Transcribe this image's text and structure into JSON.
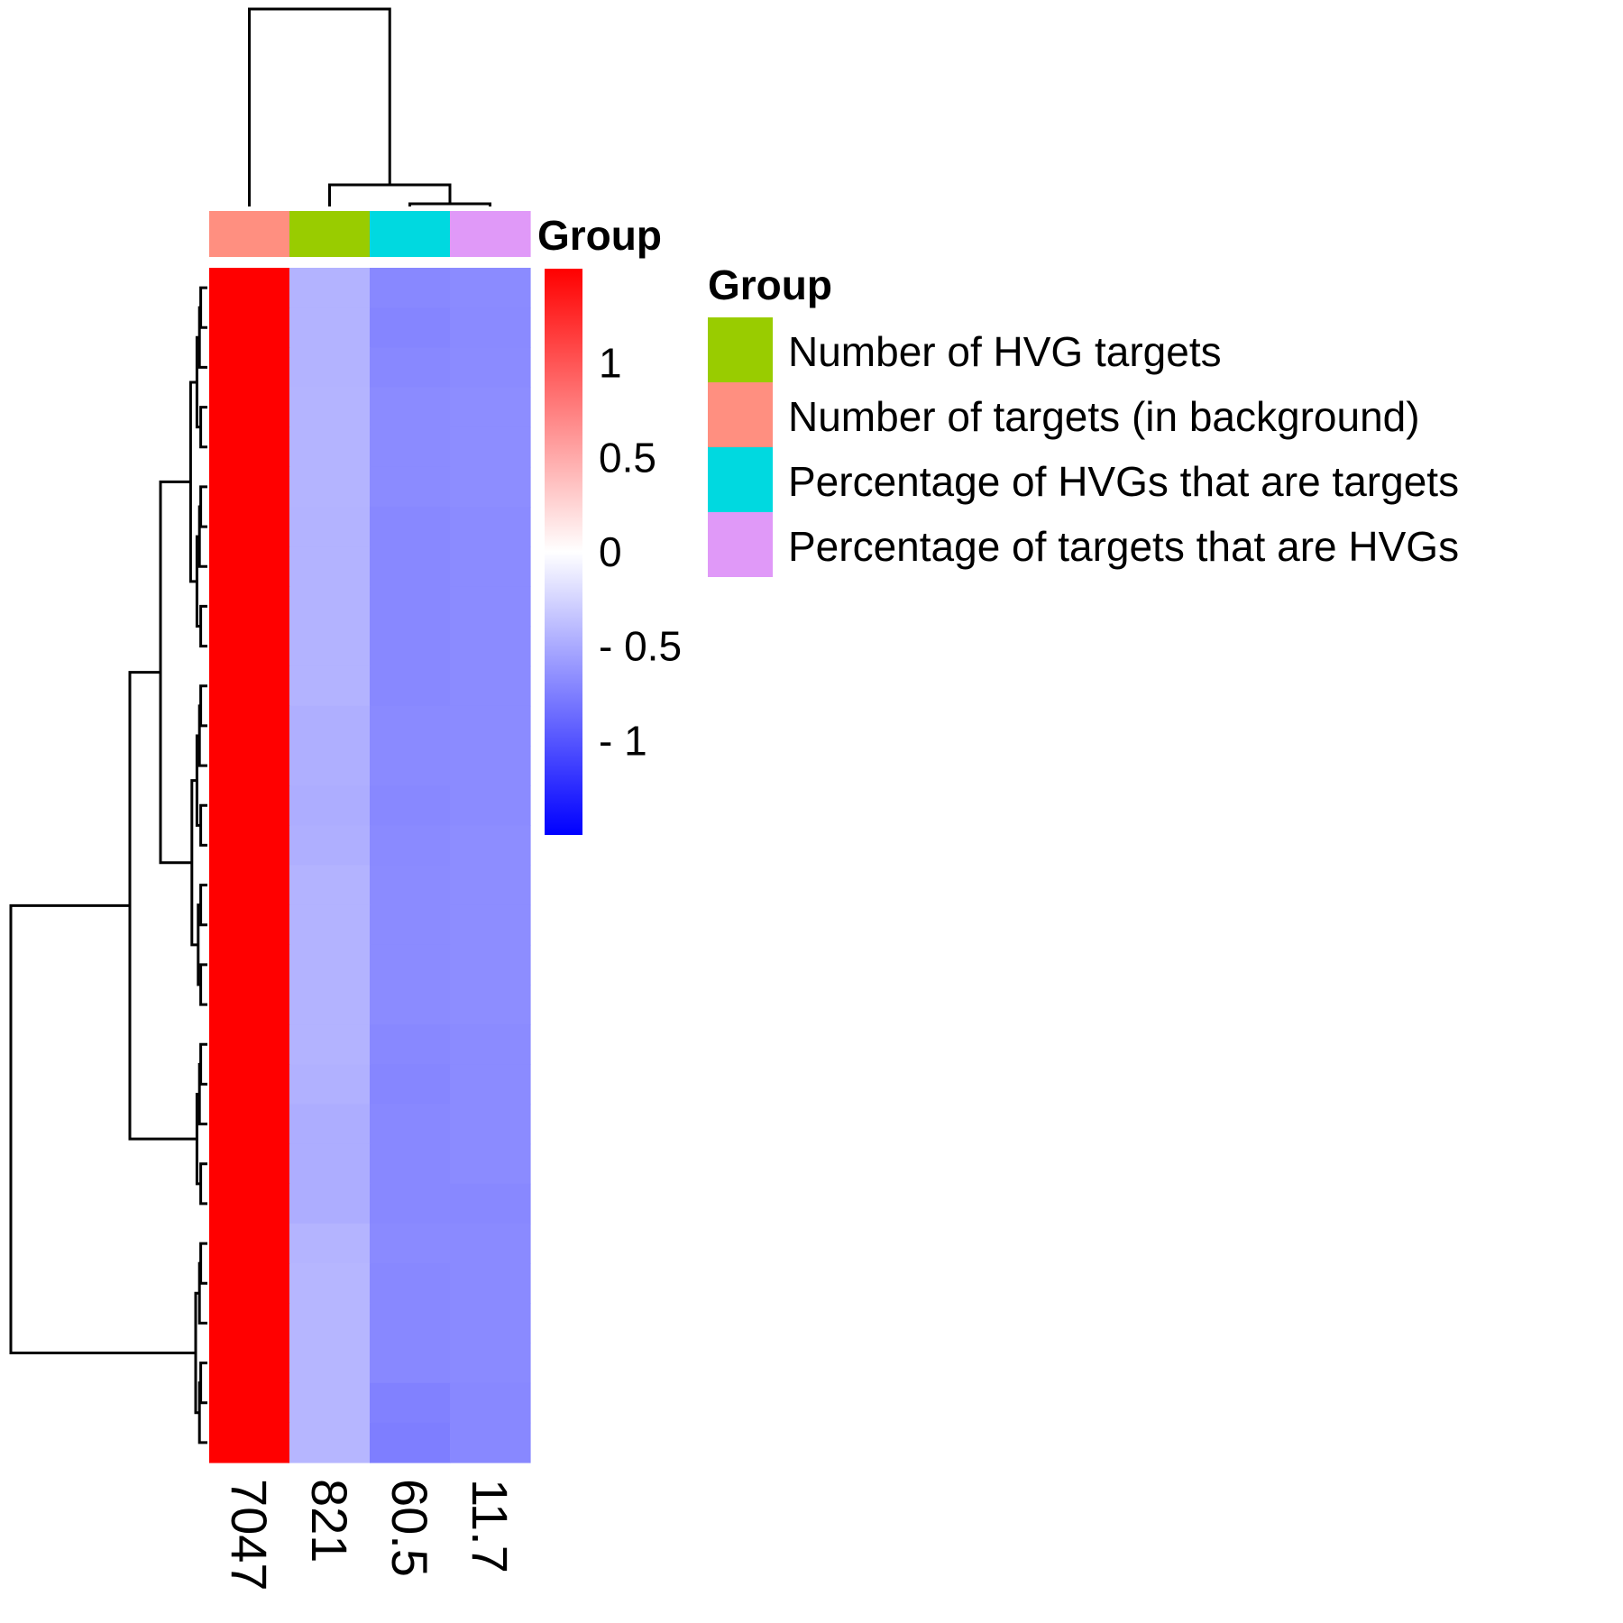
{
  "chart_data": {
    "type": "heatmap",
    "columns": [
      {
        "label": "7047",
        "group": "Number of targets (in background)"
      },
      {
        "label": "821",
        "group": "Number of HVG targets"
      },
      {
        "label": "60.5",
        "group": "Percentage of HVGs that are targets"
      },
      {
        "label": "11.7",
        "group": "Percentage of targets that are HVGs"
      }
    ],
    "rows": 30,
    "values": [
      [
        1.5,
        -0.45,
        -0.7,
        -0.68
      ],
      [
        1.5,
        -0.45,
        -0.72,
        -0.69
      ],
      [
        1.5,
        -0.45,
        -0.7,
        -0.68
      ],
      [
        1.5,
        -0.44,
        -0.68,
        -0.67
      ],
      [
        1.5,
        -0.44,
        -0.68,
        -0.67
      ],
      [
        1.5,
        -0.44,
        -0.68,
        -0.67
      ],
      [
        1.5,
        -0.45,
        -0.7,
        -0.68
      ],
      [
        1.5,
        -0.45,
        -0.7,
        -0.68
      ],
      [
        1.5,
        -0.45,
        -0.7,
        -0.68
      ],
      [
        1.5,
        -0.45,
        -0.7,
        -0.68
      ],
      [
        1.5,
        -0.45,
        -0.7,
        -0.68
      ],
      [
        1.5,
        -0.47,
        -0.69,
        -0.68
      ],
      [
        1.5,
        -0.47,
        -0.69,
        -0.68
      ],
      [
        1.5,
        -0.48,
        -0.7,
        -0.68
      ],
      [
        1.5,
        -0.47,
        -0.69,
        -0.67
      ],
      [
        1.5,
        -0.45,
        -0.68,
        -0.67
      ],
      [
        1.5,
        -0.45,
        -0.68,
        -0.67
      ],
      [
        1.5,
        -0.45,
        -0.68,
        -0.67
      ],
      [
        1.5,
        -0.45,
        -0.68,
        -0.67
      ],
      [
        1.5,
        -0.45,
        -0.7,
        -0.68
      ],
      [
        1.5,
        -0.46,
        -0.71,
        -0.68
      ],
      [
        1.5,
        -0.48,
        -0.7,
        -0.68
      ],
      [
        1.5,
        -0.48,
        -0.7,
        -0.68
      ],
      [
        1.5,
        -0.48,
        -0.7,
        -0.7
      ],
      [
        1.5,
        -0.44,
        -0.69,
        -0.69
      ],
      [
        1.5,
        -0.43,
        -0.7,
        -0.69
      ],
      [
        1.5,
        -0.43,
        -0.7,
        -0.69
      ],
      [
        1.5,
        -0.43,
        -0.7,
        -0.69
      ],
      [
        1.5,
        -0.43,
        -0.74,
        -0.7
      ],
      [
        1.5,
        -0.43,
        -0.76,
        -0.7
      ]
    ],
    "color_scale": {
      "min": -1.5,
      "max": 1.5,
      "low": "#0000ff",
      "mid": "#ffffff",
      "high": "#ff0000",
      "ticks": [
        "1",
        "0.5",
        "0",
        "- 0.5",
        "- 1"
      ],
      "tick_values": [
        1,
        0.5,
        0,
        -0.5,
        -1
      ]
    },
    "annotation": {
      "title": "Group",
      "legend_title": "Group",
      "entries": [
        {
          "name": "Number of HVG targets",
          "color": "#99cc00"
        },
        {
          "name": "Number of targets (in background)",
          "color": "#ff8f80"
        },
        {
          "name": "Percentage of HVGs that are targets",
          "color": "#00d9e0"
        },
        {
          "name": "Percentage of targets that are HVGs",
          "color": "#e099f8"
        }
      ]
    },
    "column_dendrogram": true,
    "row_dendrogram": true,
    "legend_placement": "right"
  }
}
